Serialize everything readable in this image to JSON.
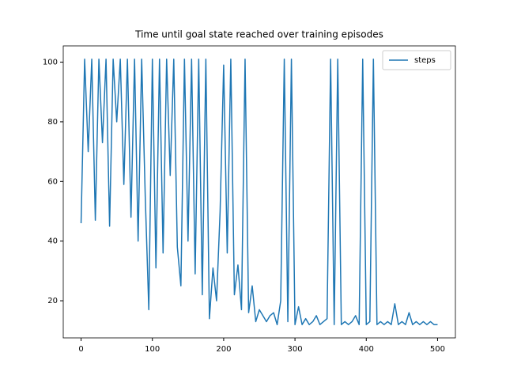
{
  "chart_data": {
    "type": "line",
    "title": "Time until goal state reached over training episodes",
    "x": [
      0,
      5,
      10,
      15,
      20,
      25,
      30,
      35,
      40,
      45,
      50,
      55,
      60,
      65,
      70,
      75,
      80,
      85,
      90,
      95,
      100,
      105,
      110,
      115,
      120,
      125,
      130,
      135,
      140,
      145,
      150,
      155,
      160,
      165,
      170,
      175,
      180,
      185,
      190,
      195,
      200,
      205,
      210,
      215,
      220,
      225,
      230,
      235,
      240,
      245,
      250,
      255,
      260,
      265,
      270,
      275,
      280,
      285,
      290,
      295,
      300,
      305,
      310,
      315,
      320,
      325,
      330,
      335,
      340,
      345,
      350,
      355,
      360,
      365,
      370,
      375,
      380,
      385,
      390,
      395,
      400,
      405,
      410,
      415,
      420,
      425,
      430,
      435,
      440,
      445,
      450,
      455,
      460,
      465,
      470,
      475,
      480,
      485,
      490,
      495,
      500
    ],
    "series": [
      {
        "name": "steps",
        "color": "#1f77b4",
        "values": [
          46,
          101,
          70,
          101,
          47,
          101,
          73,
          101,
          45,
          101,
          80,
          101,
          59,
          101,
          48,
          101,
          40,
          101,
          55,
          17,
          101,
          31,
          101,
          36,
          101,
          62,
          101,
          38,
          25,
          101,
          40,
          101,
          29,
          101,
          22,
          101,
          14,
          31,
          20,
          50,
          99,
          36,
          101,
          22,
          32,
          17,
          101,
          16,
          25,
          13,
          17,
          15,
          13,
          15,
          16,
          12,
          20,
          101,
          13,
          101,
          12,
          18,
          12,
          14,
          12,
          13,
          15,
          12,
          13,
          14,
          101,
          12,
          101,
          12,
          13,
          12,
          13,
          15,
          12,
          101,
          12,
          13,
          101,
          12,
          13,
          12,
          13,
          12,
          19,
          12,
          13,
          12,
          16,
          12,
          13,
          12,
          13,
          12,
          13,
          12,
          12
        ]
      }
    ],
    "xlim": [
      -25,
      525
    ],
    "ylim": [
      7.55,
      105.45
    ],
    "xticks": [
      0,
      100,
      200,
      300,
      400,
      500
    ],
    "yticks": [
      20,
      40,
      60,
      80,
      100
    ],
    "legend": "upper right"
  }
}
